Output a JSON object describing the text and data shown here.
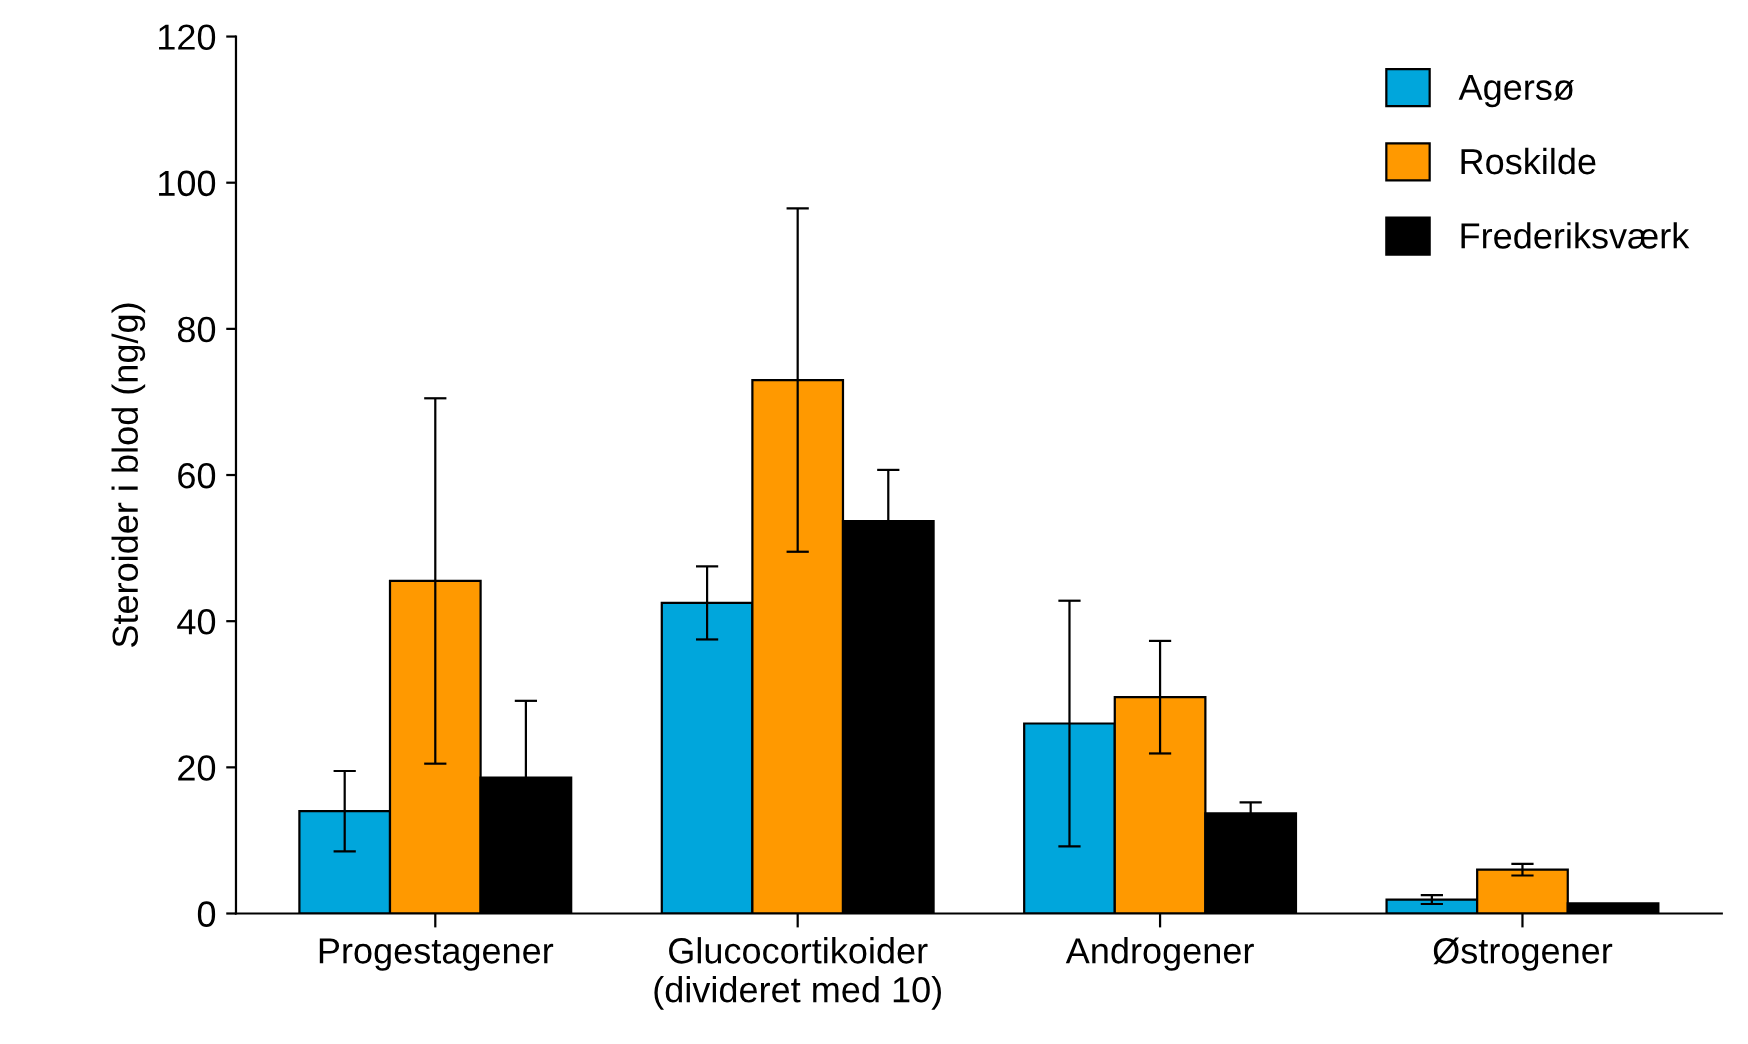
{
  "chart_data": {
    "type": "bar",
    "ylabel": "Steroider i blod (ng/g)",
    "categories": [
      "Progestagener",
      "Glucocortikoider\n(divideret med 10)",
      "Androgener",
      "Østrogener"
    ],
    "series": [
      {
        "name": "Agersø",
        "color": "#00a6dc",
        "values": [
          14,
          42.5,
          26,
          1.9
        ],
        "errors": [
          5.5,
          5,
          16.8,
          0.6
        ]
      },
      {
        "name": "Roskilde",
        "color": "#ff9900",
        "values": [
          45.5,
          73,
          29.6,
          6
        ],
        "errors": [
          25,
          23.5,
          7.7,
          0.8
        ]
      },
      {
        "name": "Frederiksværk",
        "color": "#000000",
        "values": [
          18.6,
          53.7,
          13.7,
          1.4
        ],
        "errors": [
          10.5,
          7,
          1.5,
          null
        ]
      }
    ],
    "ylim": [
      0,
      120
    ],
    "yticks": [
      0,
      20,
      40,
      60,
      80,
      100,
      120
    ],
    "grid": false,
    "legend": "top right"
  }
}
